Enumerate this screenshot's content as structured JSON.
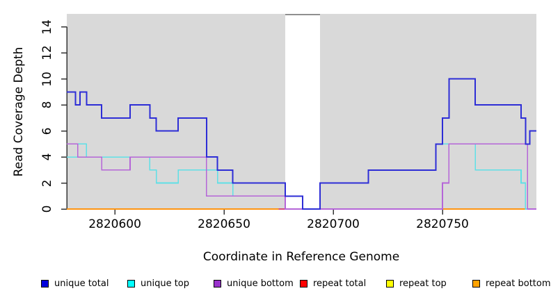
{
  "chart_data": {
    "type": "line",
    "subtype": "step-coverage-plot",
    "title": "",
    "xlabel": "Coordinate in Reference Genome",
    "ylabel": "Read Coverage Depth",
    "xlim": [
      2820578,
      2820793
    ],
    "ylim": [
      0,
      15
    ],
    "x_ticks": [
      2820600,
      2820650,
      2820700,
      2820750
    ],
    "y_ticks": [
      0,
      2,
      4,
      6,
      8,
      10,
      12,
      14
    ],
    "grid": false,
    "legend_position": "bottom",
    "plot_background": "#d9d9d9",
    "masked_region": {
      "x_start": 2820678,
      "x_end": 2820694,
      "fill": "#ffffff",
      "top_border_color": "#8f8f8f"
    },
    "series": [
      {
        "name": "unique total",
        "legend_color": "#0000dd",
        "line_color": "#2d2dd6",
        "line_width": 2,
        "steps": [
          [
            2820578,
            9
          ],
          [
            2820582,
            8
          ],
          [
            2820584,
            9
          ],
          [
            2820587,
            8
          ],
          [
            2820594,
            7
          ],
          [
            2820607,
            8
          ],
          [
            2820616,
            7
          ],
          [
            2820619,
            6
          ],
          [
            2820629,
            7
          ],
          [
            2820642,
            4
          ],
          [
            2820647,
            3
          ],
          [
            2820654,
            2
          ],
          [
            2820678,
            1
          ],
          [
            2820686,
            0
          ],
          [
            2820694,
            2
          ],
          [
            2820716,
            3
          ],
          [
            2820747,
            5
          ],
          [
            2820750,
            7
          ],
          [
            2820753,
            10
          ],
          [
            2820765,
            8
          ],
          [
            2820786,
            7
          ],
          [
            2820788,
            5
          ],
          [
            2820790,
            6
          ]
        ],
        "x_end": 2820793
      },
      {
        "name": "unique top",
        "legend_color": "#00ffff",
        "line_color": "#5ee0e6",
        "line_width": 1.6,
        "steps": [
          [
            2820578,
            4
          ],
          [
            2820583,
            5
          ],
          [
            2820587,
            4
          ],
          [
            2820616,
            3
          ],
          [
            2820619,
            2
          ],
          [
            2820629,
            3
          ],
          [
            2820647,
            2
          ],
          [
            2820654,
            1
          ],
          [
            2820686,
            0
          ],
          [
            2820694,
            2
          ],
          [
            2820716,
            3
          ],
          [
            2820747,
            5
          ],
          [
            2820765,
            3
          ],
          [
            2820786,
            2
          ],
          [
            2820788,
            0
          ]
        ],
        "x_end": 2820793
      },
      {
        "name": "unique bottom",
        "legend_color": "#9932cc",
        "line_color": "#b565d8",
        "line_width": 1.6,
        "steps": [
          [
            2820578,
            5
          ],
          [
            2820583,
            4
          ],
          [
            2820594,
            3
          ],
          [
            2820607,
            4
          ],
          [
            2820642,
            1
          ],
          [
            2820678,
            0
          ],
          [
            2820750,
            2
          ],
          [
            2820753,
            5
          ],
          [
            2820789,
            0
          ]
        ],
        "x_end": 2820793
      },
      {
        "name": "repeat total",
        "legend_color": "#ff0000",
        "line_color": "#d44a78",
        "line_width": 1.6,
        "steps": [
          [
            2820675,
            0
          ]
        ],
        "x_end": 2820750
      },
      {
        "name": "repeat top",
        "legend_color": "#ffff00",
        "line_color": "#ffff00",
        "line_width": 1.6,
        "steps": [
          [
            2820578,
            0
          ]
        ],
        "x_end": 2820793
      },
      {
        "name": "repeat bottom",
        "legend_color": "#ffa200",
        "line_color": "#ff9412",
        "line_width": 2,
        "steps": [
          [
            2820578,
            0
          ]
        ],
        "x_end": 2820793
      }
    ]
  }
}
